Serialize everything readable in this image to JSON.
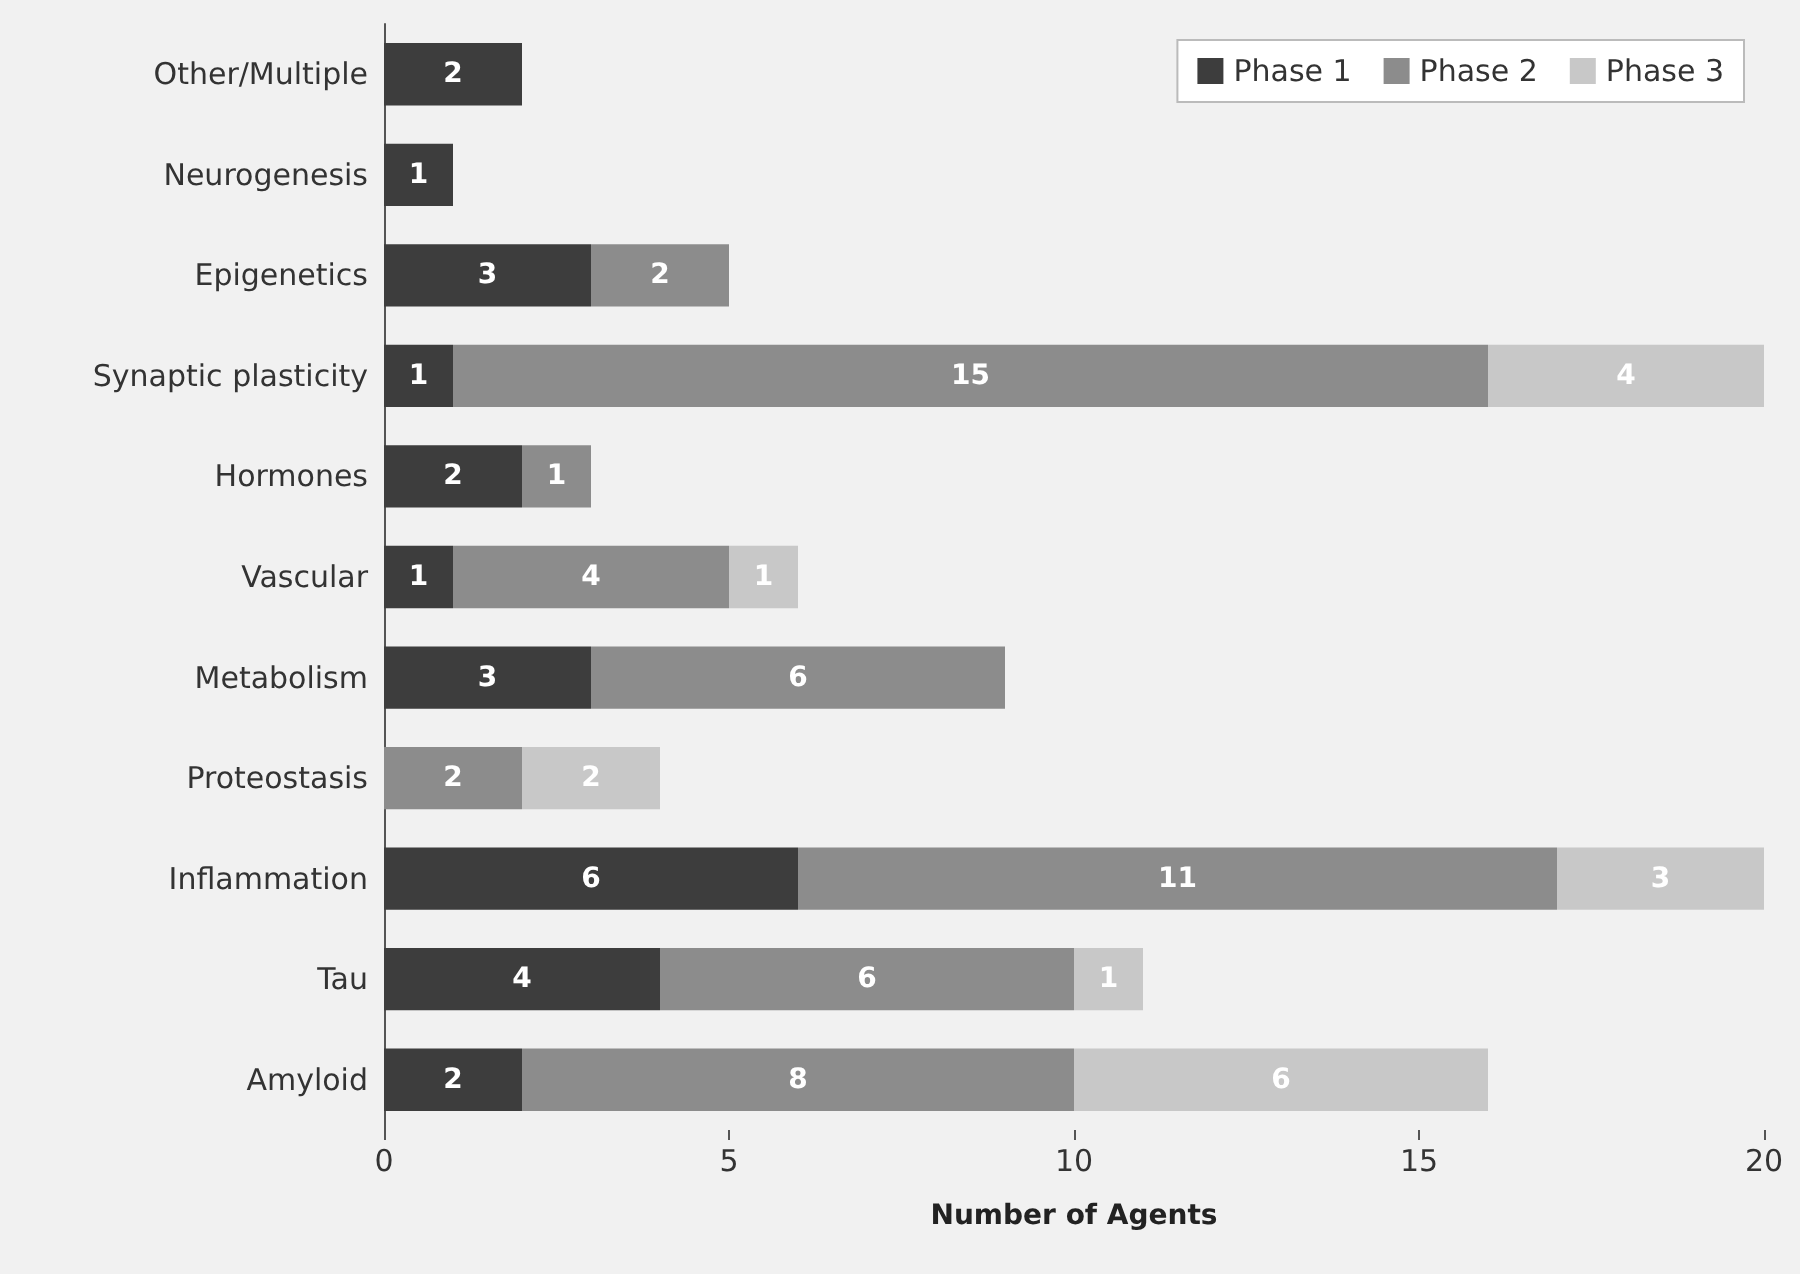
{
  "chart_data": {
    "type": "bar",
    "orientation": "horizontal",
    "stacked": true,
    "xlabel": "Number of Agents",
    "categories": [
      "Other/Multiple",
      "Neurogenesis",
      "Epigenetics",
      "Synaptic plasticity",
      "Hormones",
      "Vascular",
      "Metabolism",
      "Proteostasis",
      "Inflammation",
      "Tau",
      "Amyloid"
    ],
    "series": [
      {
        "name": "Phase 1",
        "color": "#3d3d3d",
        "values": [
          2,
          1,
          3,
          1,
          2,
          1,
          3,
          null,
          6,
          4,
          2
        ]
      },
      {
        "name": "Phase 2",
        "color": "#8c8c8c",
        "values": [
          null,
          null,
          2,
          15,
          1,
          4,
          6,
          2,
          11,
          6,
          8
        ]
      },
      {
        "name": "Phase 3",
        "color": "#c8c8c8",
        "values": [
          null,
          null,
          null,
          4,
          null,
          1,
          null,
          2,
          3,
          1,
          6
        ]
      }
    ],
    "xlim": [
      0,
      20
    ],
    "xticks": [
      0,
      5,
      10,
      15,
      20
    ],
    "grid": false,
    "legend": "top right",
    "data_labels": true
  }
}
